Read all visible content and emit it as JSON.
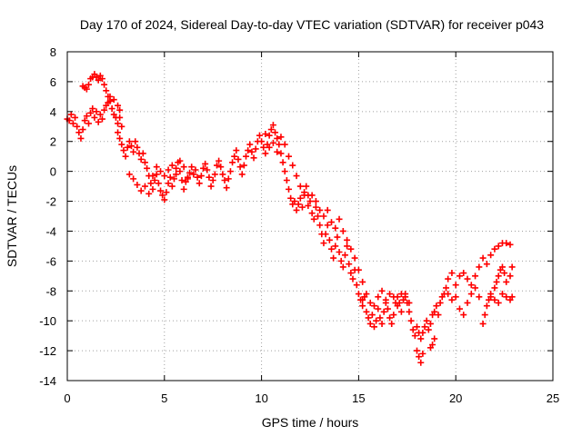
{
  "chart_data": {
    "type": "scatter",
    "title": "Day 170 of 2024, Sidereal Day-to-day VTEC variation (SDTVAR) for receiver p043",
    "xlabel": "GPS time / hours",
    "ylabel": "SDTVAR / TECUs",
    "xlim": [
      0,
      25
    ],
    "ylim": [
      -14,
      8
    ],
    "xticks": [
      0,
      5,
      10,
      15,
      20,
      25
    ],
    "yticks": [
      -14,
      -12,
      -10,
      -8,
      -6,
      -4,
      -2,
      0,
      2,
      4,
      6,
      8
    ],
    "grid": true,
    "marker": "plus",
    "color": "#ff0000",
    "series": [
      {
        "name": "SDTVAR",
        "points": [
          [
            0.0,
            3.5
          ],
          [
            0.1,
            3.4
          ],
          [
            0.2,
            3.8
          ],
          [
            0.3,
            3.2
          ],
          [
            0.4,
            3.6
          ],
          [
            0.5,
            3.0
          ],
          [
            0.6,
            2.6
          ],
          [
            0.7,
            2.2
          ],
          [
            0.8,
            2.8
          ],
          [
            0.9,
            3.4
          ],
          [
            1.0,
            3.7
          ],
          [
            1.1,
            3.2
          ],
          [
            1.2,
            3.9
          ],
          [
            1.3,
            4.2
          ],
          [
            1.4,
            3.6
          ],
          [
            1.5,
            4.0
          ],
          [
            1.6,
            3.3
          ],
          [
            1.7,
            3.8
          ],
          [
            1.8,
            3.5
          ],
          [
            1.9,
            4.1
          ],
          [
            2.0,
            4.4
          ],
          [
            2.1,
            4.6
          ],
          [
            2.2,
            5.0
          ],
          [
            2.3,
            4.2
          ],
          [
            2.4,
            3.8
          ],
          [
            2.5,
            3.6
          ],
          [
            2.6,
            3.2
          ],
          [
            2.7,
            3.6
          ],
          [
            2.8,
            3.0
          ],
          [
            0.8,
            5.7
          ],
          [
            0.9,
            5.6
          ],
          [
            1.0,
            5.5
          ],
          [
            1.1,
            5.8
          ],
          [
            1.2,
            6.2
          ],
          [
            1.3,
            6.3
          ],
          [
            1.4,
            6.5
          ],
          [
            1.5,
            6.3
          ],
          [
            1.6,
            6.1
          ],
          [
            1.7,
            6.4
          ],
          [
            1.8,
            6.2
          ],
          [
            1.9,
            5.8
          ],
          [
            2.0,
            5.4
          ],
          [
            2.1,
            5.0
          ],
          [
            2.2,
            4.7
          ],
          [
            2.4,
            4.8
          ],
          [
            2.6,
            4.4
          ],
          [
            2.7,
            4.1
          ],
          [
            2.6,
            2.6
          ],
          [
            2.7,
            2.2
          ],
          [
            2.8,
            1.8
          ],
          [
            2.9,
            1.4
          ],
          [
            3.0,
            1.0
          ],
          [
            3.1,
            1.6
          ],
          [
            3.2,
            2.0
          ],
          [
            3.3,
            1.7
          ],
          [
            3.4,
            1.3
          ],
          [
            3.5,
            2.0
          ],
          [
            3.6,
            1.6
          ],
          [
            3.7,
            1.2
          ],
          [
            3.8,
            0.8
          ],
          [
            3.9,
            1.2
          ],
          [
            4.0,
            0.6
          ],
          [
            4.1,
            0.2
          ],
          [
            4.2,
            -0.3
          ],
          [
            4.3,
            -0.8
          ],
          [
            4.4,
            -1.2
          ],
          [
            4.5,
            -0.6
          ],
          [
            4.6,
            -0.2
          ],
          [
            4.7,
            -0.8
          ],
          [
            4.8,
            -1.3
          ],
          [
            4.9,
            -1.6
          ],
          [
            5.0,
            -1.9
          ],
          [
            5.1,
            -1.4
          ],
          [
            5.2,
            -0.8
          ],
          [
            5.3,
            -0.4
          ],
          [
            5.4,
            -1.0
          ],
          [
            5.5,
            -0.5
          ],
          [
            5.6,
            0.2
          ],
          [
            5.7,
            0.6
          ],
          [
            5.8,
            0.0
          ],
          [
            5.9,
            -0.6
          ],
          [
            6.0,
            -1.2
          ],
          [
            6.1,
            -0.7
          ],
          [
            3.2,
            -0.2
          ],
          [
            3.4,
            -0.5
          ],
          [
            3.6,
            -0.9
          ],
          [
            3.8,
            -1.3
          ],
          [
            4.0,
            -1.0
          ],
          [
            4.2,
            -1.5
          ],
          [
            4.4,
            -0.3
          ],
          [
            4.6,
            0.3
          ],
          [
            4.8,
            0.0
          ],
          [
            5.0,
            -0.3
          ],
          [
            5.2,
            0.1
          ],
          [
            5.4,
            0.4
          ],
          [
            5.6,
            -0.2
          ],
          [
            5.8,
            0.7
          ],
          [
            6.0,
            0.3
          ],
          [
            6.2,
            -0.4
          ],
          [
            6.2,
            -0.5
          ],
          [
            6.3,
            -0.1
          ],
          [
            6.4,
            0.3
          ],
          [
            6.5,
            -0.2
          ],
          [
            6.6,
            0.1
          ],
          [
            6.7,
            -0.4
          ],
          [
            6.8,
            -0.8
          ],
          [
            6.9,
            -0.3
          ],
          [
            7.0,
            0.2
          ],
          [
            7.1,
            0.5
          ],
          [
            7.2,
            0.1
          ],
          [
            7.3,
            -0.4
          ],
          [
            7.4,
            -1.0
          ],
          [
            7.5,
            -0.6
          ],
          [
            7.6,
            -0.2
          ],
          [
            7.7,
            0.4
          ],
          [
            7.8,
            0.7
          ],
          [
            7.9,
            0.3
          ],
          [
            8.0,
            -0.2
          ],
          [
            8.1,
            -0.6
          ],
          [
            8.2,
            -1.1
          ],
          [
            8.3,
            -0.5
          ],
          [
            8.4,
            0.0
          ],
          [
            8.5,
            0.6
          ],
          [
            8.6,
            1.0
          ],
          [
            8.7,
            1.4
          ],
          [
            8.8,
            0.8
          ],
          [
            8.9,
            0.3
          ],
          [
            9.0,
            -0.2
          ],
          [
            9.1,
            0.4
          ],
          [
            9.2,
            1.0
          ],
          [
            9.3,
            1.4
          ],
          [
            9.4,
            1.8
          ],
          [
            9.5,
            1.3
          ],
          [
            9.6,
            0.9
          ],
          [
            9.7,
            1.5
          ],
          [
            9.8,
            2.0
          ],
          [
            9.9,
            2.4
          ],
          [
            10.0,
            2.0
          ],
          [
            10.1,
            1.6
          ],
          [
            10.2,
            1.2
          ],
          [
            10.3,
            1.8
          ],
          [
            10.4,
            2.4
          ],
          [
            10.5,
            2.8
          ],
          [
            10.6,
            3.1
          ],
          [
            10.7,
            2.6
          ],
          [
            10.8,
            2.2
          ],
          [
            10.9,
            1.8
          ],
          [
            11.0,
            1.2
          ],
          [
            11.1,
            0.6
          ],
          [
            11.2,
            0.0
          ],
          [
            11.3,
            -0.6
          ],
          [
            11.4,
            -1.2
          ],
          [
            11.5,
            -1.8
          ],
          [
            11.6,
            -2.2
          ],
          [
            11.7,
            -2.0
          ],
          [
            11.8,
            -2.6
          ],
          [
            11.9,
            -2.2
          ],
          [
            10.2,
            2.5
          ],
          [
            10.4,
            1.6
          ],
          [
            10.6,
            1.9
          ],
          [
            10.8,
            1.3
          ],
          [
            11.0,
            2.3
          ],
          [
            11.2,
            1.8
          ],
          [
            11.4,
            1.0
          ],
          [
            11.6,
            0.4
          ],
          [
            11.8,
            -0.3
          ],
          [
            12.0,
            -1.0
          ],
          [
            12.2,
            -1.6
          ],
          [
            12.4,
            -2.3
          ],
          [
            12.0,
            -1.8
          ],
          [
            12.1,
            -2.4
          ],
          [
            12.2,
            -1.4
          ],
          [
            12.3,
            -1.0
          ],
          [
            12.4,
            -1.6
          ],
          [
            12.5,
            -2.0
          ],
          [
            12.6,
            -2.8
          ],
          [
            12.7,
            -3.2
          ],
          [
            12.8,
            -2.4
          ],
          [
            12.9,
            -3.0
          ],
          [
            13.0,
            -3.6
          ],
          [
            13.1,
            -4.2
          ],
          [
            13.2,
            -4.8
          ],
          [
            13.3,
            -4.2
          ],
          [
            13.4,
            -3.6
          ],
          [
            13.5,
            -4.6
          ],
          [
            13.6,
            -5.2
          ],
          [
            13.7,
            -5.8
          ],
          [
            13.8,
            -5.0
          ],
          [
            13.9,
            -4.4
          ],
          [
            14.0,
            -5.4
          ],
          [
            14.1,
            -6.0
          ],
          [
            14.2,
            -6.4
          ],
          [
            14.3,
            -5.6
          ],
          [
            14.4,
            -5.0
          ],
          [
            14.5,
            -6.2
          ],
          [
            14.6,
            -6.8
          ],
          [
            14.7,
            -7.2
          ],
          [
            14.8,
            -6.6
          ],
          [
            14.9,
            -7.6
          ],
          [
            15.0,
            -8.2
          ],
          [
            15.1,
            -8.6
          ],
          [
            15.2,
            -9.0
          ],
          [
            15.3,
            -8.4
          ],
          [
            15.4,
            -9.4
          ],
          [
            12.6,
            -1.6
          ],
          [
            12.8,
            -2.0
          ],
          [
            13.0,
            -2.6
          ],
          [
            13.2,
            -3.0
          ],
          [
            13.4,
            -2.6
          ],
          [
            13.6,
            -3.4
          ],
          [
            13.8,
            -3.8
          ],
          [
            14.0,
            -3.2
          ],
          [
            14.2,
            -4.0
          ],
          [
            14.4,
            -4.6
          ],
          [
            14.6,
            -5.2
          ],
          [
            14.8,
            -5.8
          ],
          [
            15.0,
            -6.6
          ],
          [
            15.2,
            -7.4
          ],
          [
            15.5,
            -9.8
          ],
          [
            15.6,
            -10.2
          ],
          [
            15.7,
            -9.6
          ],
          [
            15.8,
            -10.4
          ],
          [
            15.9,
            -10.0
          ],
          [
            16.0,
            -9.2
          ],
          [
            16.1,
            -9.8
          ],
          [
            16.2,
            -10.2
          ],
          [
            16.3,
            -9.4
          ],
          [
            16.4,
            -8.8
          ],
          [
            16.5,
            -9.2
          ],
          [
            16.6,
            -9.8
          ],
          [
            16.7,
            -10.2
          ],
          [
            16.8,
            -9.6
          ],
          [
            16.9,
            -8.8
          ],
          [
            17.0,
            -8.4
          ],
          [
            17.1,
            -8.8
          ],
          [
            17.2,
            -9.4
          ],
          [
            17.3,
            -8.6
          ],
          [
            17.4,
            -8.2
          ],
          [
            17.5,
            -8.8
          ],
          [
            17.6,
            -9.4
          ],
          [
            17.7,
            -10.0
          ],
          [
            17.8,
            -10.6
          ],
          [
            17.9,
            -11.0
          ],
          [
            18.0,
            -10.4
          ],
          [
            18.1,
            -10.8
          ],
          [
            18.2,
            -11.2
          ],
          [
            15.2,
            -8.6
          ],
          [
            15.4,
            -8.2
          ],
          [
            15.6,
            -8.8
          ],
          [
            15.8,
            -9.0
          ],
          [
            16.0,
            -8.4
          ],
          [
            16.2,
            -8.0
          ],
          [
            16.4,
            -8.6
          ],
          [
            16.6,
            -8.2
          ],
          [
            16.8,
            -8.4
          ],
          [
            17.0,
            -9.0
          ],
          [
            17.2,
            -8.2
          ],
          [
            17.4,
            -8.4
          ],
          [
            17.6,
            -8.8
          ],
          [
            18.3,
            -10.8
          ],
          [
            18.4,
            -10.4
          ],
          [
            18.5,
            -10.0
          ],
          [
            18.6,
            -10.6
          ],
          [
            18.7,
            -10.2
          ],
          [
            18.8,
            -9.6
          ],
          [
            18.9,
            -9.4
          ],
          [
            19.0,
            -9.0
          ],
          [
            19.1,
            -9.6
          ],
          [
            19.2,
            -8.8
          ],
          [
            19.3,
            -8.4
          ],
          [
            19.4,
            -8.2
          ],
          [
            19.5,
            -7.8
          ],
          [
            18.0,
            -12.0
          ],
          [
            18.1,
            -12.4
          ],
          [
            18.2,
            -12.8
          ],
          [
            18.3,
            -12.2
          ],
          [
            18.7,
            -11.8
          ],
          [
            18.8,
            -11.6
          ],
          [
            18.9,
            -11.2
          ],
          [
            19.6,
            -7.2
          ],
          [
            19.8,
            -6.8
          ],
          [
            20.0,
            -7.6
          ],
          [
            20.2,
            -7.0
          ],
          [
            20.4,
            -6.8
          ],
          [
            20.6,
            -7.2
          ],
          [
            20.8,
            -7.6
          ],
          [
            21.0,
            -7.0
          ],
          [
            21.2,
            -6.4
          ],
          [
            21.4,
            -5.8
          ],
          [
            21.6,
            -6.2
          ],
          [
            21.8,
            -5.6
          ],
          [
            22.0,
            -5.2
          ],
          [
            22.2,
            -5.0
          ],
          [
            22.4,
            -4.8
          ],
          [
            22.6,
            -4.8
          ],
          [
            22.8,
            -4.9
          ],
          [
            19.6,
            -8.2
          ],
          [
            19.8,
            -8.6
          ],
          [
            20.0,
            -8.4
          ],
          [
            20.2,
            -9.2
          ],
          [
            20.4,
            -9.6
          ],
          [
            20.6,
            -8.8
          ],
          [
            20.8,
            -8.2
          ],
          [
            21.0,
            -7.8
          ],
          [
            21.2,
            -8.4
          ],
          [
            21.4,
            -10.2
          ],
          [
            21.5,
            -9.6
          ],
          [
            21.6,
            -9.0
          ],
          [
            21.7,
            -8.6
          ],
          [
            21.8,
            -8.2
          ],
          [
            22.0,
            -7.8
          ],
          [
            22.1,
            -7.4
          ],
          [
            22.2,
            -7.0
          ],
          [
            22.3,
            -6.6
          ],
          [
            22.4,
            -6.4
          ],
          [
            22.5,
            -6.8
          ],
          [
            22.6,
            -7.4
          ],
          [
            22.8,
            -7.0
          ],
          [
            22.9,
            -6.4
          ],
          [
            21.8,
            -8.4
          ],
          [
            22.0,
            -8.6
          ],
          [
            22.2,
            -8.8
          ],
          [
            22.4,
            -8.2
          ],
          [
            22.6,
            -8.4
          ],
          [
            22.8,
            -8.6
          ],
          [
            22.9,
            -8.4
          ]
        ]
      }
    ]
  }
}
